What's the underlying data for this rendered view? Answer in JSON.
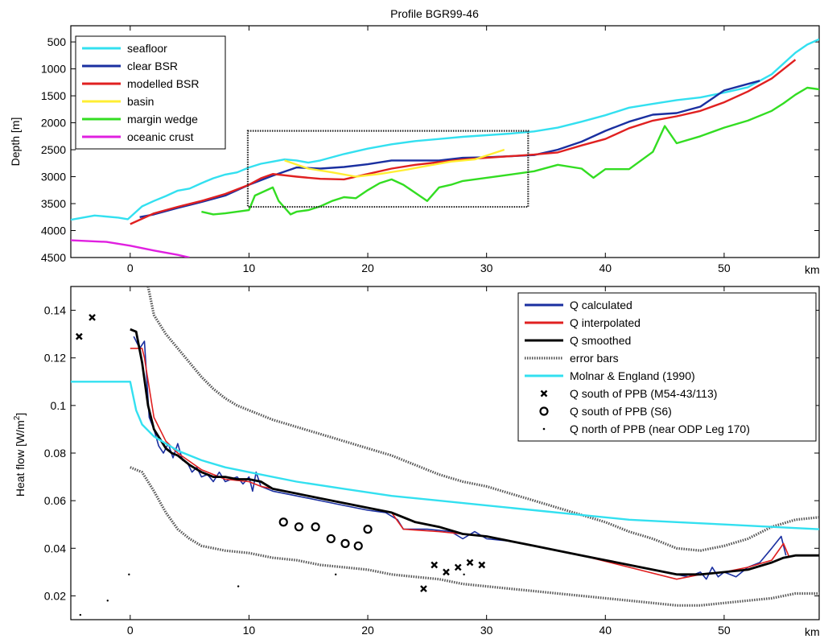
{
  "chart_data": [
    {
      "type": "line",
      "title": "Profile BGR99-46",
      "xlabel": "km",
      "ylabel": "Depth [m]",
      "xlim": [
        -5,
        58
      ],
      "ylim": [
        4500,
        200
      ],
      "y_reversed": true,
      "xticks": [
        0,
        10,
        20,
        30,
        40,
        50
      ],
      "xtick_labels": [
        "0",
        "10",
        "20",
        "30",
        "40",
        "50"
      ],
      "yticks": [
        500,
        1000,
        1500,
        2000,
        2500,
        3000,
        3500,
        4000,
        4500
      ],
      "ytick_labels": [
        "500",
        "1000",
        "1500",
        "2000",
        "2500",
        "3000",
        "3500",
        "4000",
        "4500"
      ],
      "legend_position": "top-left",
      "series": [
        {
          "name": "seafloor",
          "color": "#33e0f0",
          "x": [
            -5,
            -3,
            -1,
            -0.2,
            1,
            2,
            3,
            4,
            5,
            6,
            7,
            8,
            9,
            10,
            11,
            12,
            13,
            14,
            15,
            16,
            18,
            20,
            22,
            24,
            26,
            28,
            30,
            32,
            34,
            36,
            38,
            40,
            42,
            44,
            46,
            48,
            50,
            52,
            54,
            56,
            57,
            58
          ],
          "y": [
            3800,
            3720,
            3760,
            3790,
            3550,
            3450,
            3360,
            3260,
            3220,
            3120,
            3030,
            2960,
            2920,
            2830,
            2760,
            2720,
            2680,
            2700,
            2740,
            2700,
            2580,
            2480,
            2400,
            2340,
            2300,
            2260,
            2230,
            2200,
            2160,
            2090,
            1980,
            1860,
            1720,
            1650,
            1580,
            1530,
            1440,
            1340,
            1100,
            700,
            550,
            450
          ]
        },
        {
          "name": "clear BSR",
          "color": "#1a2fa0",
          "x": [
            0.8,
            2,
            4,
            6,
            8,
            10,
            12,
            14,
            16,
            18,
            20,
            22,
            24,
            26,
            28,
            30,
            32,
            34,
            36,
            38,
            40,
            42,
            44,
            46,
            48,
            50,
            52,
            53
          ],
          "y": [
            3750,
            3700,
            3580,
            3470,
            3350,
            3150,
            2980,
            2830,
            2850,
            2820,
            2770,
            2700,
            2700,
            2700,
            2650,
            2640,
            2620,
            2600,
            2500,
            2350,
            2150,
            1980,
            1850,
            1820,
            1700,
            1400,
            1280,
            1220
          ]
        },
        {
          "name": "modelled BSR",
          "color": "#e02020",
          "x": [
            0,
            2,
            4,
            6,
            8,
            10,
            11,
            12,
            14,
            16,
            18,
            20,
            22,
            24,
            26,
            28,
            30,
            32,
            34,
            36,
            38,
            40,
            42,
            44,
            46,
            48,
            50,
            52,
            54,
            56
          ],
          "y": [
            3880,
            3680,
            3560,
            3450,
            3320,
            3150,
            3030,
            2950,
            3000,
            3040,
            3050,
            2950,
            2850,
            2780,
            2730,
            2680,
            2650,
            2620,
            2590,
            2550,
            2420,
            2300,
            2100,
            1960,
            1880,
            1780,
            1620,
            1420,
            1180,
            830
          ]
        },
        {
          "name": "basin",
          "color": "#ffee33",
          "x": [
            13,
            15,
            17,
            19,
            21,
            23,
            25,
            27,
            29,
            31.5
          ],
          "y": [
            2700,
            2850,
            2920,
            3000,
            2950,
            2880,
            2800,
            2720,
            2680,
            2500
          ]
        },
        {
          "name": "margin wedge",
          "color": "#33dd22",
          "x": [
            6,
            7,
            8,
            10,
            10.5,
            11,
            12,
            12.5,
            13.5,
            14,
            15,
            16,
            17,
            18,
            19,
            20,
            21,
            22,
            23,
            24,
            25,
            26,
            27,
            28,
            30,
            32,
            34,
            36,
            38,
            39,
            40,
            42,
            44,
            45,
            46,
            48,
            50,
            52,
            54,
            55,
            56,
            57,
            58
          ],
          "y": [
            3650,
            3700,
            3680,
            3620,
            3350,
            3300,
            3200,
            3450,
            3700,
            3650,
            3620,
            3550,
            3450,
            3380,
            3400,
            3250,
            3120,
            3050,
            3150,
            3300,
            3450,
            3200,
            3150,
            3080,
            3020,
            2960,
            2900,
            2780,
            2850,
            3020,
            2860,
            2860,
            2540,
            2060,
            2380,
            2250,
            2090,
            1960,
            1780,
            1640,
            1480,
            1350,
            1380
          ]
        },
        {
          "name": "oceanic crust",
          "color": "#e020e0",
          "x": [
            -5,
            -2,
            0,
            2,
            4,
            5
          ],
          "y": [
            4180,
            4210,
            4280,
            4370,
            4450,
            4500
          ]
        }
      ],
      "annotation_box": {
        "x": [
          9.9,
          33.5
        ],
        "y": [
          2150,
          3560
        ]
      }
    },
    {
      "type": "line",
      "title": "",
      "xlabel": "km",
      "ylabel": "Heat flow [W/m²]",
      "ylabel_main": "Heat flow [W/m",
      "ylabel_sup": "2",
      "ylabel_end": "]",
      "xlim": [
        -5,
        58
      ],
      "ylim": [
        0.01,
        0.15
      ],
      "xticks": [
        0,
        10,
        20,
        30,
        40,
        50
      ],
      "xtick_labels": [
        "0",
        "10",
        "20",
        "30",
        "40",
        "50"
      ],
      "yticks": [
        0.02,
        0.04,
        0.06,
        0.08,
        0.1,
        0.12,
        0.14
      ],
      "ytick_labels": [
        "0.02",
        "0.04",
        "0.06",
        "0.08",
        "0.1",
        "0.12",
        "0.14"
      ],
      "legend_position": "top-right",
      "series": [
        {
          "name": "Q calculated",
          "color": "#1a2fa0",
          "style": "line",
          "x": [
            0.3,
            0.8,
            1.2,
            1.6,
            2,
            2.4,
            2.8,
            3.2,
            3.6,
            4,
            4.4,
            4.8,
            5.2,
            5.6,
            6,
            6.5,
            7,
            7.5,
            8,
            8.5,
            9,
            9.5,
            10,
            10.3,
            10.6,
            11,
            12,
            14,
            16,
            18,
            20,
            21.5,
            22.5,
            23,
            25,
            27,
            28,
            29,
            30,
            32,
            34,
            36,
            38,
            40,
            42,
            44,
            46,
            47,
            48,
            48.5,
            49,
            49.5,
            50,
            51,
            52,
            53,
            54,
            54.8,
            55.2
          ],
          "y": [
            0.129,
            0.124,
            0.127,
            0.095,
            0.09,
            0.083,
            0.08,
            0.084,
            0.078,
            0.084,
            0.077,
            0.076,
            0.072,
            0.074,
            0.07,
            0.071,
            0.068,
            0.072,
            0.068,
            0.069,
            0.07,
            0.067,
            0.07,
            0.064,
            0.072,
            0.066,
            0.064,
            0.062,
            0.06,
            0.058,
            0.056,
            0.055,
            0.052,
            0.048,
            0.048,
            0.047,
            0.044,
            0.047,
            0.044,
            0.043,
            0.041,
            0.039,
            0.037,
            0.035,
            0.033,
            0.031,
            0.029,
            0.028,
            0.03,
            0.027,
            0.032,
            0.028,
            0.03,
            0.028,
            0.032,
            0.034,
            0.04,
            0.045,
            0.037
          ]
        },
        {
          "name": "Q interpolated",
          "color": "#e02020",
          "style": "line",
          "x": [
            0,
            1,
            1.2,
            2,
            3,
            4,
            6,
            8,
            10,
            11,
            14,
            18,
            22,
            23,
            26,
            30,
            34,
            38,
            42,
            46,
            48,
            50,
            52,
            54,
            55,
            55.5
          ],
          "y": [
            0.124,
            0.124,
            0.12,
            0.095,
            0.085,
            0.08,
            0.073,
            0.069,
            0.068,
            0.066,
            0.063,
            0.059,
            0.055,
            0.048,
            0.047,
            0.045,
            0.041,
            0.037,
            0.032,
            0.027,
            0.029,
            0.03,
            0.032,
            0.035,
            0.042,
            0.036
          ]
        },
        {
          "name": "Q smoothed",
          "color": "#000000",
          "style": "line",
          "x": [
            0,
            0.5,
            1,
            1.5,
            2,
            2.5,
            3,
            3.5,
            4,
            5,
            6,
            7,
            8,
            9,
            10,
            11,
            12,
            14,
            16,
            18,
            20,
            22,
            24,
            26,
            28,
            30,
            32,
            34,
            36,
            38,
            40,
            42,
            44,
            46,
            48,
            50,
            52,
            54,
            55,
            56,
            58
          ],
          "y": [
            0.132,
            0.131,
            0.118,
            0.1,
            0.09,
            0.086,
            0.082,
            0.08,
            0.079,
            0.075,
            0.072,
            0.07,
            0.07,
            0.069,
            0.069,
            0.068,
            0.065,
            0.063,
            0.061,
            0.059,
            0.057,
            0.055,
            0.051,
            0.049,
            0.046,
            0.045,
            0.043,
            0.041,
            0.039,
            0.037,
            0.035,
            0.033,
            0.031,
            0.029,
            0.029,
            0.03,
            0.031,
            0.034,
            0.036,
            0.037,
            0.037
          ]
        },
        {
          "name": "error bars",
          "color": "#555555",
          "style": "dotted-upper",
          "x": [
            1.5,
            2,
            3,
            4,
            5,
            6,
            7,
            8,
            9,
            10,
            11,
            12,
            14,
            16,
            18,
            20,
            22,
            24,
            26,
            28,
            30,
            32,
            34,
            36,
            38,
            40,
            42,
            44,
            46,
            48,
            50,
            52,
            54,
            56,
            58
          ],
          "y": [
            0.15,
            0.138,
            0.13,
            0.124,
            0.118,
            0.112,
            0.107,
            0.103,
            0.1,
            0.098,
            0.096,
            0.094,
            0.091,
            0.088,
            0.085,
            0.082,
            0.079,
            0.075,
            0.071,
            0.068,
            0.066,
            0.063,
            0.06,
            0.057,
            0.054,
            0.051,
            0.047,
            0.044,
            0.04,
            0.039,
            0.041,
            0.044,
            0.049,
            0.052,
            0.053
          ]
        },
        {
          "name": "error bars lower",
          "color": "#555555",
          "style": "dotted-lower",
          "x": [
            0,
            1,
            2,
            3,
            4,
            5,
            6,
            8,
            10,
            12,
            14,
            16,
            18,
            20,
            22,
            24,
            26,
            28,
            30,
            32,
            34,
            36,
            38,
            40,
            42,
            44,
            46,
            48,
            50,
            52,
            54,
            56,
            58
          ],
          "y": [
            0.074,
            0.072,
            0.064,
            0.055,
            0.048,
            0.044,
            0.041,
            0.039,
            0.038,
            0.036,
            0.035,
            0.033,
            0.032,
            0.031,
            0.029,
            0.028,
            0.027,
            0.025,
            0.024,
            0.023,
            0.022,
            0.021,
            0.02,
            0.019,
            0.018,
            0.017,
            0.016,
            0.016,
            0.017,
            0.018,
            0.019,
            0.021,
            0.021
          ]
        },
        {
          "name": "Molnar & England (1990)",
          "color": "#33e0f0",
          "style": "line",
          "x": [
            -5,
            -1,
            0,
            0.5,
            1,
            2,
            3,
            4,
            6,
            8,
            10,
            14,
            18,
            22,
            26,
            30,
            34,
            38,
            42,
            46,
            50,
            54,
            58
          ],
          "y": [
            0.11,
            0.11,
            0.11,
            0.098,
            0.092,
            0.087,
            0.084,
            0.081,
            0.077,
            0.074,
            0.072,
            0.068,
            0.065,
            0.062,
            0.06,
            0.058,
            0.056,
            0.054,
            0.052,
            0.051,
            0.05,
            0.049,
            0.048
          ]
        },
        {
          "name": "Q south of PPB (M54-43/113)",
          "color": "#000000",
          "style": "x-marker",
          "x": [
            -4.3,
            -3.2,
            24.7,
            25.6,
            26.6,
            27.6,
            28.6,
            29.6
          ],
          "y": [
            0.129,
            0.137,
            0.023,
            0.033,
            0.03,
            0.032,
            0.034,
            0.033
          ]
        },
        {
          "name": "Q south of PPB (S6)",
          "color": "#000000",
          "style": "o-marker",
          "x": [
            12.9,
            14.2,
            15.6,
            16.9,
            18.1,
            19.2,
            20
          ],
          "y": [
            0.051,
            0.049,
            0.049,
            0.044,
            0.042,
            0.041,
            0.048
          ]
        },
        {
          "name": "Q north of PPB (near ODP Leg 170)",
          "color": "#000000",
          "style": "dot-marker",
          "x": [
            -4.2,
            -1.9,
            -0.1,
            9.1,
            17.3,
            28.1
          ],
          "y": [
            0.012,
            0.018,
            0.029,
            0.024,
            0.029,
            0.029
          ]
        }
      ]
    }
  ]
}
